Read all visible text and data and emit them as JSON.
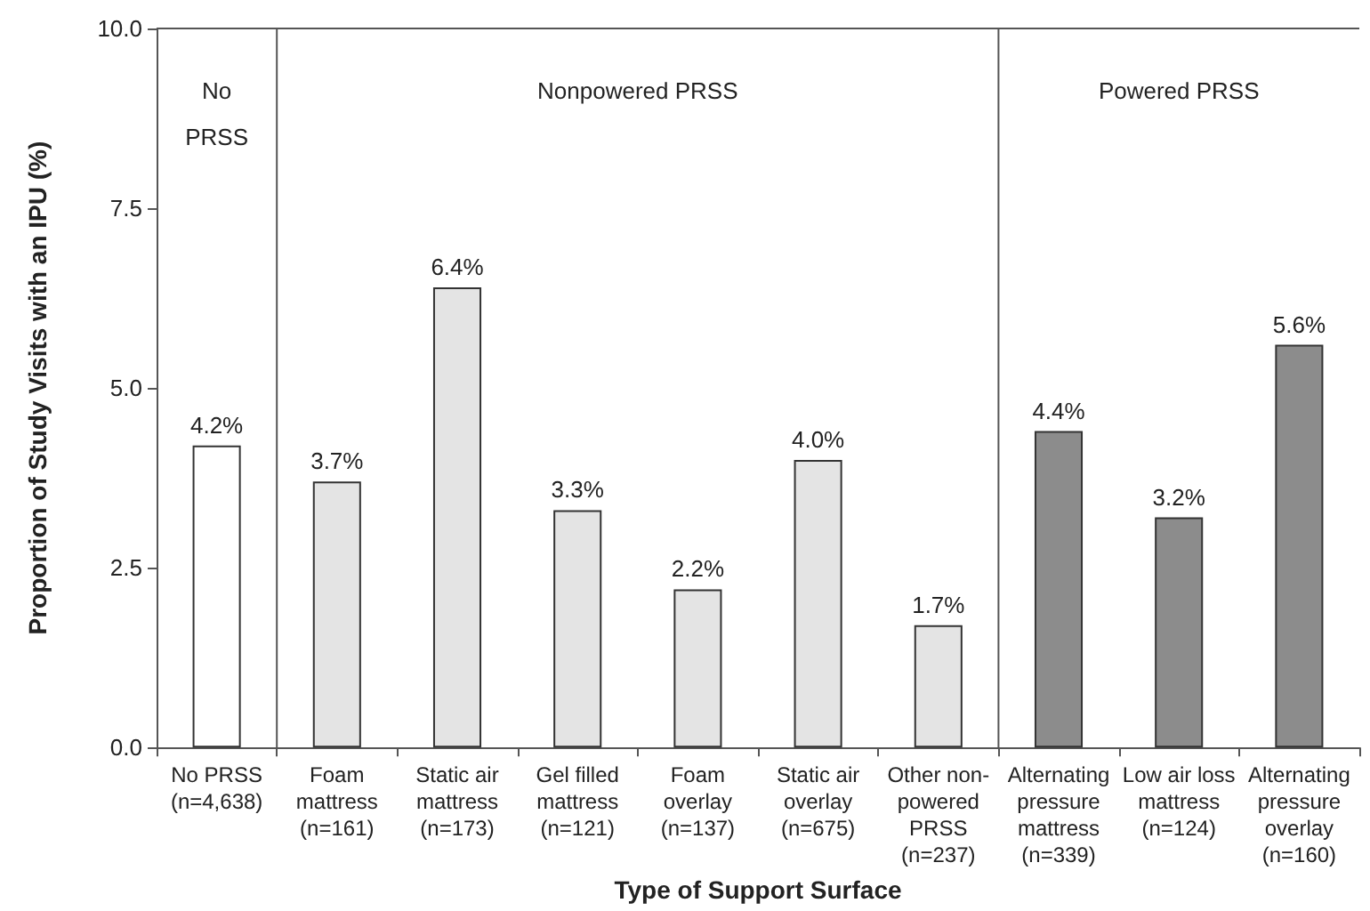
{
  "chart_data": {
    "type": "bar",
    "xlabel": "Type of Support Surface",
    "ylabel": "Proportion of Study Visits with an IPU (%)",
    "categories": [
      "No PRSS\n(n=4,638)",
      "Foam\nmattress\n(n=161)",
      "Static air\nmattress\n(n=173)",
      "Gel filled\nmattress\n(n=121)",
      "Foam\noverlay\n(n=137)",
      "Static air\noverlay\n(n=675)",
      "Other non-\npowered\nPRSS\n(n=237)",
      "Alternating\npressure\nmattress\n(n=339)",
      "Low air loss\nmattress\n(n=124)",
      "Alternating\npressure\noverlay\n(n=160)"
    ],
    "values": [
      4.2,
      3.7,
      6.4,
      3.3,
      2.2,
      4.0,
      1.7,
      4.4,
      3.2,
      5.6
    ],
    "value_labels": [
      "4.2%",
      "3.7%",
      "6.4%",
      "3.3%",
      "2.2%",
      "4.0%",
      "1.7%",
      "4.4%",
      "3.2%",
      "5.6%"
    ],
    "colors": [
      "#ffffff",
      "#e4e4e4",
      "#e4e4e4",
      "#e4e4e4",
      "#e4e4e4",
      "#e4e4e4",
      "#e4e4e4",
      "#8c8c8c",
      "#8c8c8c",
      "#8c8c8c"
    ],
    "ylim": [
      0,
      10
    ],
    "yticks": [
      {
        "value": 0,
        "label": "0.0"
      },
      {
        "value": 2.5,
        "label": "2.5"
      },
      {
        "value": 5,
        "label": "5.0"
      },
      {
        "value": 7.5,
        "label": "7.5"
      },
      {
        "value": 10,
        "label": "10.0"
      }
    ],
    "annotations": [
      "No\nPRSS",
      "Nonpowered PRSS",
      "Powered PRSS"
    ],
    "grid": false
  }
}
